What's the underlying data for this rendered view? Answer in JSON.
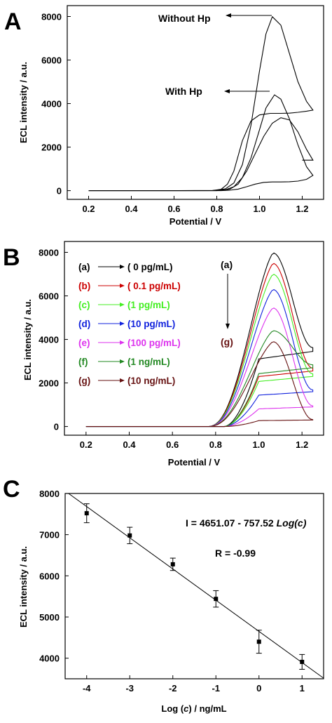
{
  "chart_data": [
    {
      "panel": "A",
      "type": "line",
      "xlabel": "Potential / V",
      "ylabel": "ECL intensity / a.u.",
      "xlim": [
        0.1,
        1.3
      ],
      "ylim": [
        -400,
        8500
      ],
      "xticks": [
        0.2,
        0.4,
        0.6,
        0.8,
        1.0,
        1.2
      ],
      "xtick_labels": [
        "0.2",
        "0.4",
        "0.6",
        "0.8",
        "1.0",
        "1.2"
      ],
      "yticks": [
        0,
        2000,
        4000,
        6000,
        8000
      ],
      "ytick_labels": [
        "0",
        "2000",
        "4000",
        "6000",
        "8000"
      ],
      "grid": false,
      "annotations": [
        {
          "text": "Without Hp",
          "points_to": [
            1.06,
            7990
          ]
        },
        {
          "text": "With Hp",
          "points_to": [
            1.06,
            4400
          ]
        }
      ],
      "series": [
        {
          "color": "#000000",
          "forward": [
            [
              0.2,
              0
            ],
            [
              0.6,
              0
            ],
            [
              0.78,
              10
            ],
            [
              0.84,
              80
            ],
            [
              0.88,
              350
            ],
            [
              0.92,
              1200
            ],
            [
              0.96,
              3000
            ],
            [
              1.0,
              5500
            ],
            [
              1.03,
              7200
            ],
            [
              1.06,
              7990
            ],
            [
              1.1,
              7600
            ],
            [
              1.14,
              6300
            ],
            [
              1.18,
              5000
            ],
            [
              1.22,
              4100
            ],
            [
              1.25,
              3700
            ]
          ],
          "reverse": [
            [
              1.25,
              3700
            ],
            [
              1.22,
              3650
            ],
            [
              1.18,
              3600
            ],
            [
              1.14,
              3560
            ],
            [
              1.1,
              3550
            ],
            [
              1.05,
              3550
            ],
            [
              1.0,
              3480
            ],
            [
              0.96,
              3200
            ],
            [
              0.92,
              2300
            ],
            [
              0.88,
              900
            ],
            [
              0.85,
              300
            ],
            [
              0.82,
              60
            ],
            [
              0.78,
              5
            ],
            [
              0.6,
              0
            ],
            [
              0.2,
              0
            ]
          ]
        },
        {
          "color": "#000000",
          "forward": [
            [
              0.2,
              0
            ],
            [
              0.78,
              0
            ],
            [
              0.84,
              40
            ],
            [
              0.88,
              180
            ],
            [
              0.92,
              600
            ],
            [
              0.96,
              1500
            ],
            [
              1.0,
              2800
            ],
            [
              1.03,
              3800
            ],
            [
              1.07,
              4400
            ],
            [
              1.1,
              4200
            ],
            [
              1.14,
              3300
            ],
            [
              1.18,
              2100
            ],
            [
              1.22,
              1100
            ],
            [
              1.25,
              700
            ]
          ],
          "reverse": [
            [
              1.25,
              700
            ],
            [
              1.22,
              520
            ],
            [
              1.18,
              440
            ],
            [
              1.14,
              410
            ],
            [
              1.1,
              400
            ],
            [
              1.06,
              400
            ],
            [
              1.02,
              380
            ],
            [
              0.98,
              300
            ],
            [
              0.94,
              180
            ],
            [
              0.9,
              70
            ],
            [
              0.86,
              20
            ],
            [
              0.82,
              0
            ],
            [
              0.2,
              0
            ]
          ]
        },
        {
          "color": "#000000",
          "forward": [
            [
              0.2,
              0
            ],
            [
              0.8,
              0
            ],
            [
              0.86,
              60
            ],
            [
              0.9,
              300
            ],
            [
              0.94,
              900
            ],
            [
              0.98,
              1700
            ],
            [
              1.02,
              2500
            ],
            [
              1.06,
              3100
            ],
            [
              1.1,
              3350
            ],
            [
              1.14,
              3250
            ],
            [
              1.18,
              2700
            ],
            [
              1.22,
              1900
            ],
            [
              1.25,
              1400
            ]
          ],
          "reverse": [
            [
              1.25,
              1400
            ],
            [
              1.2,
              1400
            ]
          ]
        }
      ]
    },
    {
      "panel": "B",
      "type": "line",
      "xlabel": "Potential / V",
      "ylabel": "ECL intensity / a.u.",
      "xlim": [
        0.1,
        1.3
      ],
      "ylim": [
        -400,
        8500
      ],
      "xticks": [
        0.2,
        0.4,
        0.6,
        0.8,
        1.0,
        1.2
      ],
      "xtick_labels": [
        "0.2",
        "0.4",
        "0.6",
        "0.8",
        "1.0",
        "1.2"
      ],
      "yticks": [
        0,
        2000,
        4000,
        6000,
        8000
      ],
      "ytick_labels": [
        "0",
        "2000",
        "4000",
        "6000",
        "8000"
      ],
      "grid": false,
      "legend_placement": "left",
      "arrow_labels": {
        "top": "(a)",
        "bottom": "(g)"
      },
      "series": [
        {
          "name": "( 0 pg/mL)",
          "letter": "(a)",
          "color": "#000000",
          "peak": 7980,
          "plateau": 3450
        },
        {
          "name": "( 0.1 pg/mL)",
          "letter": "(b)",
          "color": "#cc0000",
          "peak": 7500,
          "plateau": 2550
        },
        {
          "name": "(1 pg/mL)",
          "letter": "(c)",
          "color": "#44ee22",
          "peak": 7000,
          "plateau": 2300
        },
        {
          "name": "(10 pg/mL)",
          "letter": "(d)",
          "color": "#1122dd",
          "peak": 6300,
          "plateau": 1600
        },
        {
          "name": "(100 pg/mL)",
          "letter": "(e)",
          "color": "#dd33ee",
          "peak": 5450,
          "plateau": 900
        },
        {
          "name": "(1 ng/mL)",
          "letter": "(f)",
          "color": "#228822",
          "peak": 4400,
          "plateau": 2700
        },
        {
          "name": "(10 ng/mL)",
          "letter": "(g)",
          "color": "#661111",
          "peak": 3900,
          "plateau": 300
        }
      ]
    },
    {
      "panel": "C",
      "type": "scatter",
      "xlabel": "Log (c) / ng/mL",
      "ylabel": "ECL intensity / a.u.",
      "xlim": [
        -4.5,
        1.5
      ],
      "ylim": [
        3500,
        8000
      ],
      "xticks": [
        -4,
        -3,
        -2,
        -1,
        0,
        1
      ],
      "xtick_labels": [
        "-4",
        "-3",
        "-2",
        "-1",
        "0",
        "1"
      ],
      "yticks": [
        4000,
        5000,
        6000,
        7000,
        8000
      ],
      "ytick_labels": [
        "4000",
        "5000",
        "6000",
        "7000",
        "8000"
      ],
      "grid": false,
      "equation": {
        "prefix": "I = 4651.07 - 757.52 ",
        "emph": "Log(c)"
      },
      "r_value": "R = -0.99",
      "fit_line": {
        "intercept": 4651.07,
        "slope": -757.52
      },
      "points": [
        {
          "x": -4,
          "y": 7520,
          "err": 230
        },
        {
          "x": -3,
          "y": 6980,
          "err": 200
        },
        {
          "x": -2,
          "y": 6280,
          "err": 150
        },
        {
          "x": -1,
          "y": 5440,
          "err": 200
        },
        {
          "x": 0,
          "y": 4400,
          "err": 280
        },
        {
          "x": 1,
          "y": 3910,
          "err": 180
        }
      ]
    }
  ]
}
